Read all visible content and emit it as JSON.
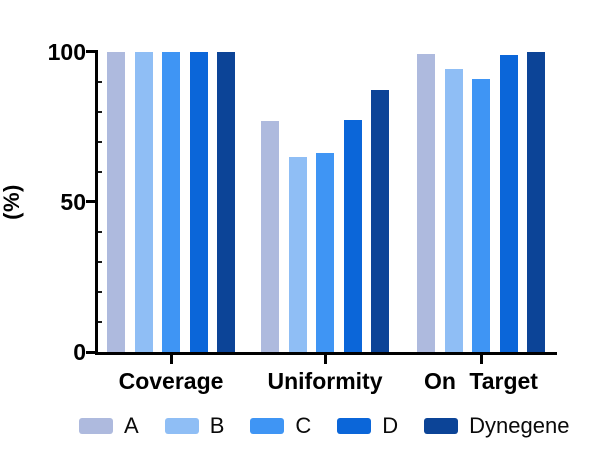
{
  "figure": {
    "background": "#ffffff",
    "axis_color": "#000000"
  },
  "yaxis": {
    "label": "(%)",
    "ticks": [
      "100",
      "50",
      "0"
    ]
  },
  "chart_data": {
    "type": "bar",
    "title": "",
    "xlabel": "",
    "ylabel": "(%)",
    "categories": [
      "Coverage",
      "Uniformity",
      "On Target"
    ],
    "series": [
      {
        "name": "A",
        "color": "#aebade",
        "values": [
          100,
          77,
          99.5
        ]
      },
      {
        "name": "B",
        "color": "#8fbef5",
        "values": [
          100,
          65,
          94.5
        ]
      },
      {
        "name": "C",
        "color": "#3f95f4",
        "values": [
          100,
          66.5,
          91
        ]
      },
      {
        "name": "D",
        "color": "#0b66d9",
        "values": [
          100,
          77.5,
          99
        ]
      },
      {
        "name": "Dynegene",
        "color": "#0c4497",
        "values": [
          100,
          87.5,
          100
        ]
      }
    ],
    "ylim": [
      0,
      100
    ],
    "yticks": [
      0,
      50,
      100
    ],
    "grid": false,
    "legend_position": "bottom"
  }
}
